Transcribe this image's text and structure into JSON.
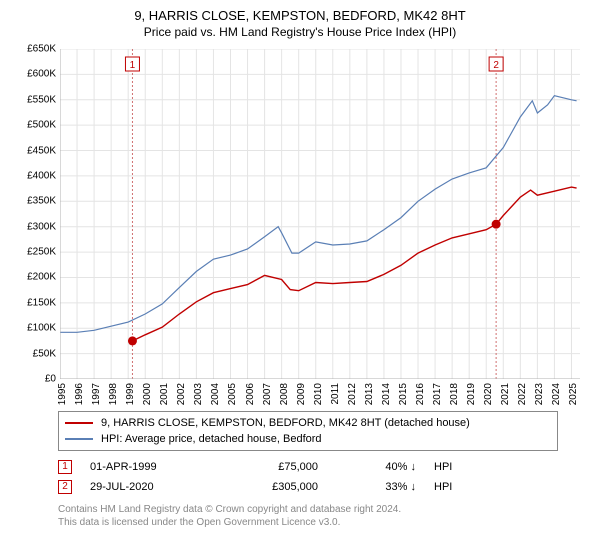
{
  "title": "9, HARRIS CLOSE, KEMPSTON, BEDFORD, MK42 8HT",
  "subtitle": "Price paid vs. HM Land Registry's House Price Index (HPI)",
  "chart": {
    "type": "line",
    "background_color": "#ffffff",
    "grid_color": "#e4e4e4",
    "event_line_color": "#d07070",
    "event_line_dash": "2,2",
    "xlim": [
      1995,
      2025.5
    ],
    "ylim": [
      0,
      650000
    ],
    "ytick_step": 50000,
    "ytick_labels": [
      "£0",
      "£50K",
      "£100K",
      "£150K",
      "£200K",
      "£250K",
      "£300K",
      "£350K",
      "£400K",
      "£450K",
      "£500K",
      "£550K",
      "£600K",
      "£650K"
    ],
    "xtick_step": 1,
    "xtick_labels": [
      "1995",
      "1996",
      "1997",
      "1998",
      "1999",
      "2000",
      "2001",
      "2002",
      "2003",
      "2004",
      "2005",
      "2006",
      "2007",
      "2008",
      "2009",
      "2010",
      "2011",
      "2012",
      "2013",
      "2014",
      "2015",
      "2016",
      "2017",
      "2018",
      "2019",
      "2020",
      "2021",
      "2022",
      "2023",
      "2024",
      "2025"
    ],
    "series": [
      {
        "name": "price_paid",
        "label": "9, HARRIS CLOSE, KEMPSTON, BEDFORD, MK42 8HT (detached house)",
        "color": "#c00000",
        "line_width": 1.4,
        "points": [
          [
            1999.25,
            75000
          ],
          [
            2000,
            87000
          ],
          [
            2001,
            102000
          ],
          [
            2002,
            128000
          ],
          [
            2003,
            152000
          ],
          [
            2004,
            170000
          ],
          [
            2005,
            178000
          ],
          [
            2006,
            186000
          ],
          [
            2007,
            204000
          ],
          [
            2008,
            196000
          ],
          [
            2008.5,
            176000
          ],
          [
            2009,
            174000
          ],
          [
            2010,
            190000
          ],
          [
            2011,
            188000
          ],
          [
            2012,
            190000
          ],
          [
            2013,
            192000
          ],
          [
            2014,
            206000
          ],
          [
            2015,
            224000
          ],
          [
            2016,
            248000
          ],
          [
            2017,
            264000
          ],
          [
            2018,
            278000
          ],
          [
            2019,
            286000
          ],
          [
            2020,
            294000
          ],
          [
            2020.58,
            305000
          ],
          [
            2021,
            322000
          ],
          [
            2022,
            358000
          ],
          [
            2022.6,
            372000
          ],
          [
            2023,
            362000
          ],
          [
            2024,
            370000
          ],
          [
            2025,
            378000
          ],
          [
            2025.3,
            376000
          ]
        ]
      },
      {
        "name": "hpi",
        "label": "HPI: Average price, detached house, Bedford",
        "color": "#5a7fb5",
        "line_width": 1.2,
        "points": [
          [
            1995,
            92000
          ],
          [
            1996,
            92000
          ],
          [
            1997,
            96000
          ],
          [
            1998,
            104000
          ],
          [
            1999,
            112000
          ],
          [
            2000,
            128000
          ],
          [
            2001,
            148000
          ],
          [
            2002,
            180000
          ],
          [
            2003,
            212000
          ],
          [
            2004,
            236000
          ],
          [
            2005,
            244000
          ],
          [
            2006,
            256000
          ],
          [
            2007,
            280000
          ],
          [
            2007.8,
            300000
          ],
          [
            2008,
            288000
          ],
          [
            2008.6,
            248000
          ],
          [
            2009,
            248000
          ],
          [
            2010,
            270000
          ],
          [
            2011,
            264000
          ],
          [
            2012,
            266000
          ],
          [
            2013,
            272000
          ],
          [
            2014,
            294000
          ],
          [
            2015,
            318000
          ],
          [
            2016,
            350000
          ],
          [
            2017,
            374000
          ],
          [
            2018,
            394000
          ],
          [
            2019,
            406000
          ],
          [
            2020,
            416000
          ],
          [
            2021,
            456000
          ],
          [
            2022,
            516000
          ],
          [
            2022.7,
            548000
          ],
          [
            2023,
            524000
          ],
          [
            2023.6,
            540000
          ],
          [
            2024,
            558000
          ],
          [
            2025,
            550000
          ],
          [
            2025.3,
            548000
          ]
        ]
      }
    ],
    "events": [
      {
        "marker": "1",
        "date_label": "01-APR-1999",
        "x": 1999.25,
        "price_label": "£75,000",
        "price": 75000,
        "delta_label": "40% ↓ HPI",
        "vs": "HPI"
      },
      {
        "marker": "2",
        "date_label": "29-JUL-2020",
        "x": 2020.58,
        "price_label": "£305,000",
        "price": 305000,
        "delta_label": "33% ↓ HPI",
        "vs": "HPI"
      }
    ],
    "event_marker": {
      "box_border": "#c00000",
      "box_fill": "#ffffff",
      "text_color": "#c00000",
      "dot_fill": "#c00000",
      "dot_radius": 4.5
    }
  },
  "attribution": {
    "line1": "Contains HM Land Registry data © Crown copyright and database right 2024.",
    "line2": "This data is licensed under the Open Government Licence v3.0."
  }
}
